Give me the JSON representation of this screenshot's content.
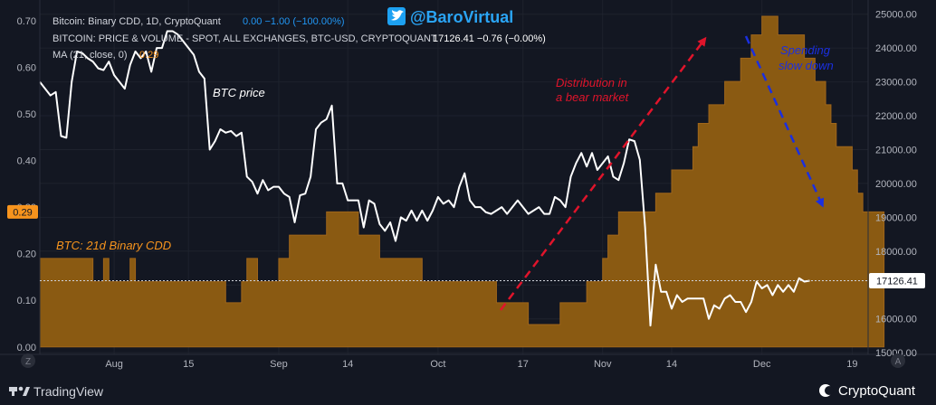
{
  "watermark": {
    "handle": "@BaroVirtual",
    "icon": "twitter-bird-icon"
  },
  "header": {
    "line1": {
      "name": "Bitcoin: Binary CDD, 1D, CryptoQuant",
      "values": "0.00  −1.00 (−100.00%)"
    },
    "line2": {
      "name": "BITCOIN: PRICE & VOLUME - SPOT, ALL EXCHANGES, BTC-USD, CRYPTOQUANT",
      "values": "17126.41  −0.76 (−0.00%)"
    },
    "line3": {
      "name": "MA (21, close, 0)",
      "values": "0.29"
    }
  },
  "annotations": {
    "btc_price": "BTC price",
    "binary_cdd": "BTC: 21d Binary CDD",
    "distribution": [
      "Distribution in",
      "a bear market"
    ],
    "spending": [
      "Spending",
      "slow down"
    ]
  },
  "badges": {
    "left_value": "0.29",
    "right_value": "17126.41"
  },
  "footer": {
    "left_brand": "TradingView",
    "right_brand": "CryptoQuant",
    "left_icon": "tradingview-logo-icon",
    "right_icon": "cryptoquant-logo-icon",
    "left_corner": "Z",
    "right_corner": "A"
  },
  "colors": {
    "background": "#131722",
    "cdd_fill": "#8a5a12",
    "cdd_line": "#a0661a",
    "price_line": "#ffffff",
    "red_arrow": "#e0142b",
    "blue_arrow": "#1a2fe0",
    "orange_text": "#f7941d",
    "blue_text": "#2196f3"
  },
  "chart_data": {
    "type": "area",
    "x_ticks": [
      {
        "day": 14,
        "label": "Aug"
      },
      {
        "day": 28,
        "label": "15"
      },
      {
        "day": 45,
        "label": "Sep"
      },
      {
        "day": 58,
        "label": "14"
      },
      {
        "day": 75,
        "label": "Oct"
      },
      {
        "day": 91,
        "label": "17"
      },
      {
        "day": 106,
        "label": "Nov"
      },
      {
        "day": 119,
        "label": "14"
      },
      {
        "day": 136,
        "label": "Dec"
      },
      {
        "day": 153,
        "label": "19"
      }
    ],
    "x_range": [
      0,
      156
    ],
    "y_left": {
      "range": [
        -0.016,
        0.745
      ],
      "ticks": [
        0.0,
        0.1,
        0.2,
        0.3,
        0.4,
        0.5,
        0.6,
        0.7
      ]
    },
    "y_right": {
      "range": [
        14950,
        25420
      ],
      "ticks": [
        15000,
        16000,
        17000,
        18000,
        19000,
        20000,
        21000,
        22000,
        23000,
        24000,
        25000
      ]
    },
    "series": [
      {
        "name": "BTC: 21d Binary CDD",
        "axis": "left",
        "step": 1,
        "values": [
          0.19,
          0.19,
          0.19,
          0.19,
          0.19,
          0.19,
          0.19,
          0.19,
          0.19,
          0.19,
          0.14,
          0.14,
          0.19,
          0.14,
          0.14,
          0.14,
          0.14,
          0.19,
          0.14,
          0.14,
          0.14,
          0.14,
          0.14,
          0.14,
          0.14,
          0.14,
          0.14,
          0.14,
          0.14,
          0.14,
          0.14,
          0.14,
          0.14,
          0.14,
          0.14,
          0.095,
          0.095,
          0.095,
          0.14,
          0.19,
          0.19,
          0.14,
          0.14,
          0.14,
          0.14,
          0.19,
          0.19,
          0.24,
          0.24,
          0.24,
          0.24,
          0.24,
          0.24,
          0.24,
          0.29,
          0.29,
          0.29,
          0.29,
          0.29,
          0.29,
          0.24,
          0.24,
          0.24,
          0.24,
          0.19,
          0.19,
          0.19,
          0.19,
          0.19,
          0.19,
          0.19,
          0.19,
          0.14,
          0.14,
          0.14,
          0.14,
          0.14,
          0.14,
          0.14,
          0.14,
          0.14,
          0.14,
          0.14,
          0.14,
          0.14,
          0.14,
          0.095,
          0.095,
          0.095,
          0.095,
          0.095,
          0.095,
          0.048,
          0.048,
          0.048,
          0.048,
          0.048,
          0.048,
          0.095,
          0.095,
          0.095,
          0.095,
          0.095,
          0.14,
          0.14,
          0.14,
          0.19,
          0.24,
          0.24,
          0.29,
          0.29,
          0.29,
          0.29,
          0.29,
          0.29,
          0.29,
          0.33,
          0.33,
          0.33,
          0.38,
          0.38,
          0.38,
          0.38,
          0.43,
          0.48,
          0.48,
          0.52,
          0.52,
          0.52,
          0.57,
          0.57,
          0.57,
          0.62,
          0.62,
          0.67,
          0.67,
          0.71,
          0.71,
          0.71,
          0.67,
          0.67,
          0.67,
          0.67,
          0.67,
          0.62,
          0.62,
          0.57,
          0.57,
          0.52,
          0.48,
          0.43,
          0.43,
          0.43,
          0.38,
          0.33,
          0.29,
          0.29,
          0.29,
          0.29
        ]
      },
      {
        "name": "BTC price",
        "axis": "right",
        "points": [
          [
            0,
            23000
          ],
          [
            1,
            22800
          ],
          [
            2,
            22600
          ],
          [
            3,
            22700
          ],
          [
            4,
            21400
          ],
          [
            5,
            21350
          ],
          [
            6,
            23000
          ],
          [
            7,
            23900
          ],
          [
            8,
            23850
          ],
          [
            9,
            23700
          ],
          [
            10,
            23600
          ],
          [
            11,
            23400
          ],
          [
            12,
            23350
          ],
          [
            13,
            23600
          ],
          [
            14,
            23200
          ],
          [
            15,
            23000
          ],
          [
            16,
            22800
          ],
          [
            17,
            23500
          ],
          [
            18,
            23900
          ],
          [
            19,
            23700
          ],
          [
            20,
            23900
          ],
          [
            21,
            23300
          ],
          [
            22,
            24000
          ],
          [
            23,
            24000
          ],
          [
            24,
            24500
          ],
          [
            25,
            24500
          ],
          [
            26,
            24400
          ],
          [
            27,
            24200
          ],
          [
            28,
            24000
          ],
          [
            29,
            23800
          ],
          [
            30,
            23300
          ],
          [
            31,
            23100
          ],
          [
            32,
            21000
          ],
          [
            33,
            21250
          ],
          [
            34,
            21600
          ],
          [
            35,
            21500
          ],
          [
            36,
            21550
          ],
          [
            37,
            21400
          ],
          [
            38,
            21500
          ],
          [
            39,
            20200
          ],
          [
            40,
            20050
          ],
          [
            41,
            19700
          ],
          [
            42,
            20100
          ],
          [
            43,
            19800
          ],
          [
            44,
            19900
          ],
          [
            45,
            19900
          ],
          [
            46,
            19700
          ],
          [
            47,
            19600
          ],
          [
            48,
            18850
          ],
          [
            49,
            19650
          ],
          [
            50,
            19700
          ],
          [
            51,
            20200
          ],
          [
            52,
            21600
          ],
          [
            53,
            21800
          ],
          [
            54,
            21900
          ],
          [
            55,
            22300
          ],
          [
            56,
            20000
          ],
          [
            57,
            20000
          ],
          [
            58,
            19500
          ],
          [
            59,
            19500
          ],
          [
            60,
            19500
          ],
          [
            61,
            18700
          ],
          [
            62,
            19500
          ],
          [
            63,
            19400
          ],
          [
            64,
            18800
          ],
          [
            65,
            18600
          ],
          [
            66,
            18850
          ],
          [
            67,
            18300
          ],
          [
            68,
            19000
          ],
          [
            69,
            18900
          ],
          [
            70,
            19200
          ],
          [
            71,
            18900
          ],
          [
            72,
            19200
          ],
          [
            73,
            18900
          ],
          [
            74,
            19200
          ],
          [
            75,
            19600
          ],
          [
            76,
            19400
          ],
          [
            77,
            19500
          ],
          [
            78,
            19300
          ],
          [
            79,
            19900
          ],
          [
            80,
            20300
          ],
          [
            81,
            19500
          ],
          [
            82,
            19300
          ],
          [
            83,
            19300
          ],
          [
            84,
            19150
          ],
          [
            85,
            19100
          ],
          [
            86,
            19200
          ],
          [
            87,
            19300
          ],
          [
            88,
            19100
          ],
          [
            89,
            19300
          ],
          [
            90,
            19500
          ],
          [
            91,
            19300
          ],
          [
            92,
            19100
          ],
          [
            93,
            19200
          ],
          [
            94,
            19300
          ],
          [
            95,
            19100
          ],
          [
            96,
            19100
          ],
          [
            97,
            19600
          ],
          [
            98,
            19500
          ],
          [
            99,
            19300
          ],
          [
            100,
            20200
          ],
          [
            101,
            20600
          ],
          [
            102,
            20900
          ],
          [
            103,
            20500
          ],
          [
            104,
            20900
          ],
          [
            105,
            20400
          ],
          [
            106,
            20600
          ],
          [
            107,
            20800
          ],
          [
            108,
            20200
          ],
          [
            109,
            20100
          ],
          [
            110,
            20600
          ],
          [
            111,
            21300
          ],
          [
            112,
            21250
          ],
          [
            113,
            20700
          ],
          [
            114,
            18700
          ],
          [
            115,
            15800
          ],
          [
            116,
            17600
          ],
          [
            117,
            16800
          ],
          [
            118,
            16800
          ],
          [
            119,
            16300
          ],
          [
            120,
            16700
          ],
          [
            121,
            16500
          ],
          [
            122,
            16600
          ],
          [
            123,
            16600
          ],
          [
            124,
            16600
          ],
          [
            125,
            16600
          ],
          [
            126,
            16000
          ],
          [
            127,
            16400
          ],
          [
            128,
            16300
          ],
          [
            129,
            16600
          ],
          [
            130,
            16700
          ],
          [
            131,
            16500
          ],
          [
            132,
            16500
          ],
          [
            133,
            16200
          ],
          [
            134,
            16500
          ],
          [
            135,
            17100
          ],
          [
            136,
            16900
          ],
          [
            137,
            17000
          ],
          [
            138,
            16700
          ],
          [
            139,
            17000
          ],
          [
            140,
            16800
          ],
          [
            141,
            17000
          ],
          [
            142,
            16800
          ],
          [
            143,
            17200
          ],
          [
            144,
            17100
          ],
          [
            145,
            17126
          ]
        ]
      }
    ]
  }
}
